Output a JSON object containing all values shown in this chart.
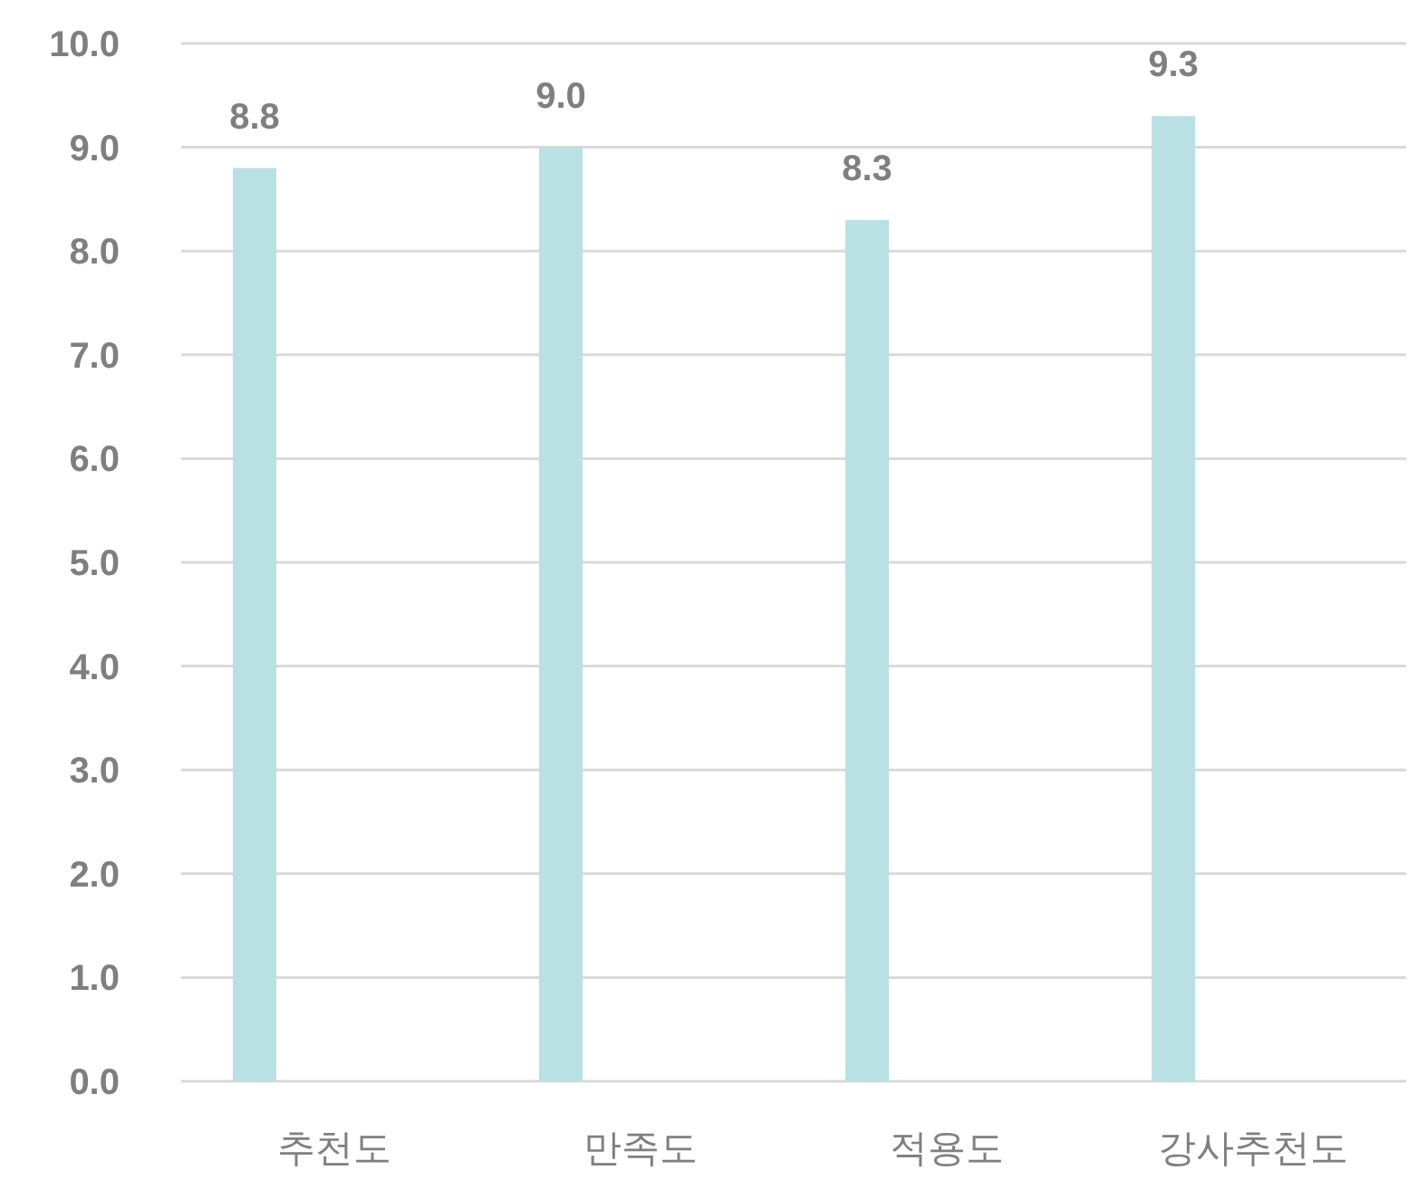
{
  "chart_data": {
    "type": "bar",
    "categories": [
      "추천도",
      "만족도",
      "적용도",
      "강사추천도"
    ],
    "values": [
      8.8,
      9.0,
      8.3,
      9.3
    ],
    "value_labels": [
      "8.8",
      "9.0",
      "8.3",
      "9.3"
    ],
    "color": "#b9e0e2",
    "ylim": [
      0,
      10
    ],
    "yticks": [
      {
        "value": 0,
        "label": "0.0"
      },
      {
        "value": 1,
        "label": "1.0"
      },
      {
        "value": 2,
        "label": "2.0"
      },
      {
        "value": 3,
        "label": "3.0"
      },
      {
        "value": 4,
        "label": "4.0"
      },
      {
        "value": 5,
        "label": "5.0"
      },
      {
        "value": 6,
        "label": "6.0"
      },
      {
        "value": 7,
        "label": "7.0"
      },
      {
        "value": 8,
        "label": "8.0"
      },
      {
        "value": 9,
        "label": "9.0"
      },
      {
        "value": 10,
        "label": "10.0"
      }
    ],
    "grid": "y"
  }
}
